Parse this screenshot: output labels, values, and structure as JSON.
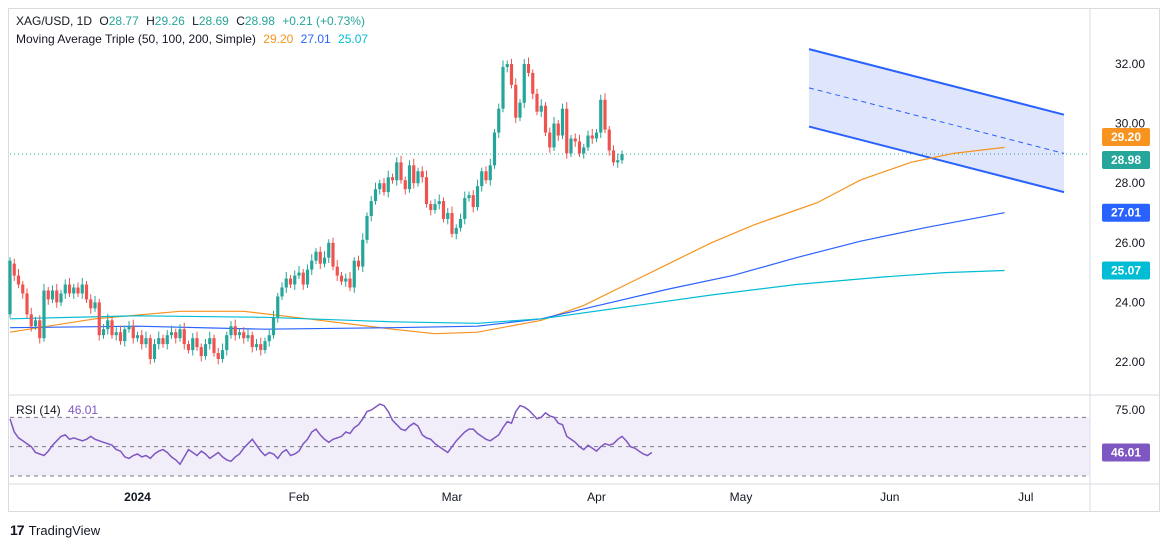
{
  "header": {
    "symbol": "XAG/USD, 1D",
    "open_label": "O",
    "open": "28.77",
    "high_label": "H",
    "high": "29.26",
    "low_label": "L",
    "low": "28.69",
    "close_label": "C",
    "close": "28.98",
    "change": "+0.21 (+0.73%)",
    "ma_title": "Moving Average Triple (50, 100, 200, Simple)",
    "ma50": "29.20",
    "ma100": "27.01",
    "ma200": "25.07"
  },
  "rsi_header": {
    "title": "RSI (14)",
    "value": "46.01"
  },
  "brand": {
    "name": "TradingView"
  },
  "colors": {
    "up": "#26a69a",
    "down": "#ef5350",
    "ma50": "#f7931e",
    "ma100": "#2962ff",
    "ma200": "#00bcd4",
    "rsi": "#7e57c2",
    "channel_fill": "#c5d0f7",
    "channel_line": "#2962ff",
    "last_price": "#26a69a"
  },
  "chart_data": [
    {
      "type": "candlestick",
      "title": "XAG/USD, 1D",
      "ylim": [
        20.6,
        33.2
      ],
      "y_ticks": [
        "32.00",
        "30.00",
        "28.00",
        "26.00",
        "24.00",
        "22.00"
      ],
      "x_ticks": [
        "2024",
        "Feb",
        "Mar",
        "Apr",
        "May",
        "Jun",
        "Jul"
      ],
      "last_price": 28.98,
      "series": [
        {
          "name": "MA 50",
          "last": 29.2,
          "values": [
            [
              0,
              23.0
            ],
            [
              20,
              23.45
            ],
            [
              40,
              23.7
            ],
            [
              55,
              23.7
            ],
            [
              70,
              23.45
            ],
            [
              90,
              23.1
            ],
            [
              100,
              22.95
            ],
            [
              110,
              23.0
            ],
            [
              125,
              23.4
            ],
            [
              135,
              23.9
            ],
            [
              145,
              24.6
            ],
            [
              155,
              25.3
            ],
            [
              165,
              26.0
            ],
            [
              175,
              26.6
            ],
            [
              180,
              26.85
            ],
            [
              190,
              27.35
            ],
            [
              200,
              28.1
            ],
            [
              212,
              28.7
            ],
            [
              222,
              29.0
            ],
            [
              234,
              29.2
            ]
          ]
        },
        {
          "name": "MA 100",
          "last": 27.01,
          "values": [
            [
              0,
              23.15
            ],
            [
              30,
              23.2
            ],
            [
              60,
              23.1
            ],
            [
              90,
              23.15
            ],
            [
              110,
              23.2
            ],
            [
              125,
              23.45
            ],
            [
              140,
              23.95
            ],
            [
              155,
              24.45
            ],
            [
              170,
              24.9
            ],
            [
              185,
              25.5
            ],
            [
              200,
              26.05
            ],
            [
              215,
              26.5
            ],
            [
              234,
              27.01
            ]
          ]
        },
        {
          "name": "MA 200",
          "last": 25.07,
          "values": [
            [
              0,
              23.45
            ],
            [
              30,
              23.55
            ],
            [
              60,
              23.5
            ],
            [
              90,
              23.35
            ],
            [
              110,
              23.3
            ],
            [
              125,
              23.45
            ],
            [
              145,
              23.85
            ],
            [
              165,
              24.25
            ],
            [
              185,
              24.6
            ],
            [
              205,
              24.85
            ],
            [
              220,
              25.0
            ],
            [
              234,
              25.07
            ]
          ]
        }
      ],
      "channel": {
        "upper": [
          [
            188,
            32.5
          ],
          [
            248,
            30.3
          ]
        ],
        "lower": [
          [
            188,
            29.9
          ],
          [
            248,
            27.7
          ]
        ],
        "mid": [
          [
            188,
            31.2
          ],
          [
            248,
            29.0
          ]
        ]
      },
      "candles": [
        [
          23.6,
          25.4
        ],
        [
          25.3,
          24.9
        ],
        [
          24.9,
          24.6
        ],
        [
          24.6,
          24.3
        ],
        [
          24.3,
          23.6
        ],
        [
          23.6,
          23.2
        ],
        [
          23.2,
          23.4
        ],
        [
          23.4,
          22.8
        ],
        [
          22.8,
          24.4
        ],
        [
          24.4,
          24.1
        ],
        [
          24.1,
          24.4
        ],
        [
          24.4,
          24.0
        ],
        [
          24.0,
          24.3
        ],
        [
          24.3,
          24.6
        ],
        [
          24.6,
          24.3
        ],
        [
          24.3,
          24.5
        ],
        [
          24.5,
          24.3
        ],
        [
          24.3,
          24.6
        ],
        [
          24.6,
          24.1
        ],
        [
          24.1,
          23.8
        ],
        [
          23.8,
          24.0
        ],
        [
          24.0,
          22.9
        ],
        [
          22.9,
          23.1
        ],
        [
          23.1,
          23.4
        ],
        [
          23.4,
          22.9
        ],
        [
          22.9,
          23.0
        ],
        [
          23.0,
          22.7
        ],
        [
          22.7,
          23.1
        ],
        [
          23.1,
          23.2
        ],
        [
          23.2,
          22.8
        ],
        [
          22.8,
          22.9
        ],
        [
          22.9,
          22.6
        ],
        [
          22.6,
          22.8
        ],
        [
          22.8,
          22.1
        ],
        [
          22.1,
          22.6
        ],
        [
          22.6,
          22.8
        ],
        [
          22.8,
          22.6
        ],
        [
          22.6,
          22.9
        ],
        [
          22.9,
          23.0
        ],
        [
          23.0,
          22.8
        ],
        [
          22.8,
          23.1
        ],
        [
          23.1,
          22.6
        ],
        [
          22.6,
          22.4
        ],
        [
          22.4,
          22.8
        ],
        [
          22.8,
          22.5
        ],
        [
          22.5,
          22.2
        ],
        [
          22.2,
          22.6
        ],
        [
          22.6,
          22.8
        ],
        [
          22.8,
          22.3
        ],
        [
          22.3,
          22.1
        ],
        [
          22.1,
          22.4
        ],
        [
          22.4,
          22.9
        ],
        [
          22.9,
          23.2
        ],
        [
          23.2,
          22.9
        ],
        [
          22.9,
          23.0
        ],
        [
          23.0,
          22.8
        ],
        [
          22.8,
          22.9
        ],
        [
          22.9,
          22.5
        ],
        [
          22.5,
          22.6
        ],
        [
          22.6,
          22.4
        ],
        [
          22.4,
          22.7
        ],
        [
          22.7,
          22.9
        ],
        [
          22.9,
          23.5
        ],
        [
          23.5,
          24.2
        ],
        [
          24.2,
          24.5
        ],
        [
          24.5,
          24.8
        ],
        [
          24.8,
          24.6
        ],
        [
          24.6,
          24.9
        ],
        [
          24.9,
          25.0
        ],
        [
          25.0,
          24.6
        ],
        [
          24.6,
          25.1
        ],
        [
          25.1,
          25.4
        ],
        [
          25.4,
          25.7
        ],
        [
          25.7,
          25.3
        ],
        [
          25.3,
          25.5
        ],
        [
          25.5,
          26.0
        ],
        [
          26.0,
          25.2
        ],
        [
          25.2,
          24.9
        ],
        [
          24.9,
          24.7
        ],
        [
          24.7,
          24.8
        ],
        [
          24.8,
          24.5
        ],
        [
          24.5,
          25.4
        ],
        [
          25.4,
          25.2
        ],
        [
          25.2,
          26.1
        ],
        [
          26.1,
          26.9
        ],
        [
          26.9,
          27.4
        ],
        [
          27.4,
          27.8
        ],
        [
          27.8,
          28.0
        ],
        [
          28.0,
          27.7
        ],
        [
          27.7,
          28.2
        ],
        [
          28.2,
          28.1
        ],
        [
          28.1,
          28.7
        ],
        [
          28.7,
          28.1
        ],
        [
          28.1,
          27.8
        ],
        [
          27.8,
          28.6
        ],
        [
          28.6,
          28.0
        ],
        [
          28.0,
          28.4
        ],
        [
          28.4,
          28.2
        ],
        [
          28.2,
          27.3
        ],
        [
          27.3,
          27.1
        ],
        [
          27.1,
          27.3
        ],
        [
          27.3,
          27.4
        ],
        [
          27.4,
          26.8
        ],
        [
          26.8,
          27.0
        ],
        [
          27.0,
          26.3
        ],
        [
          26.3,
          26.5
        ],
        [
          26.5,
          26.8
        ],
        [
          26.8,
          27.5
        ],
        [
          27.5,
          27.6
        ],
        [
          27.6,
          27.2
        ],
        [
          27.2,
          27.9
        ],
        [
          27.9,
          28.4
        ],
        [
          28.4,
          28.1
        ],
        [
          28.1,
          28.6
        ],
        [
          28.6,
          29.7
        ],
        [
          29.7,
          30.5
        ],
        [
          30.5,
          31.9
        ],
        [
          31.9,
          32.0
        ],
        [
          32.0,
          31.3
        ],
        [
          31.3,
          30.2
        ],
        [
          30.2,
          30.7
        ],
        [
          30.7,
          32.0
        ],
        [
          32.0,
          31.7
        ],
        [
          31.7,
          31.0
        ],
        [
          31.0,
          30.4
        ],
        [
          30.4,
          30.6
        ],
        [
          30.6,
          29.7
        ],
        [
          29.7,
          29.2
        ],
        [
          29.2,
          30.0
        ],
        [
          30.0,
          29.6
        ],
        [
          29.6,
          30.5
        ],
        [
          30.5,
          29.0
        ],
        [
          29.0,
          29.5
        ],
        [
          29.5,
          29.4
        ],
        [
          29.4,
          29.0
        ],
        [
          29.0,
          29.2
        ],
        [
          29.2,
          29.6
        ],
        [
          29.6,
          29.5
        ],
        [
          29.5,
          29.7
        ],
        [
          29.7,
          30.8
        ],
        [
          30.8,
          29.8
        ],
        [
          29.8,
          29.1
        ],
        [
          29.1,
          28.7
        ],
        [
          28.7,
          28.77
        ],
        [
          28.77,
          28.98
        ]
      ]
    },
    {
      "type": "line",
      "title": "RSI (14)",
      "ylim": [
        20,
        85
      ],
      "y_ticks": [
        "75.00"
      ],
      "levels": [
        70,
        50,
        30
      ],
      "last": 46.01,
      "values": [
        69,
        60,
        56,
        54,
        52,
        50,
        46,
        45,
        44,
        47,
        51,
        54,
        57,
        58,
        55,
        56,
        55,
        54,
        55,
        57,
        55,
        54,
        53,
        52,
        51,
        48,
        47,
        43,
        42,
        44,
        45,
        43,
        44,
        42,
        45,
        47,
        48,
        46,
        43,
        41,
        38,
        43,
        48,
        46,
        44,
        47,
        45,
        42,
        44,
        46,
        43,
        41,
        40,
        43,
        45,
        49,
        52,
        55,
        51,
        47,
        44,
        46,
        45,
        42,
        46,
        48,
        44,
        45,
        47,
        52,
        55,
        60,
        62,
        58,
        55,
        53,
        55,
        56,
        57,
        60,
        59,
        63,
        65,
        69,
        74,
        75,
        77,
        79,
        78,
        74,
        68,
        65,
        62,
        61,
        64,
        66,
        64,
        58,
        56,
        55,
        52,
        50,
        48,
        46,
        50,
        54,
        57,
        60,
        62,
        62,
        59,
        57,
        55,
        54,
        56,
        58,
        63,
        67,
        66,
        74,
        78,
        77,
        75,
        72,
        69,
        70,
        73,
        71,
        70,
        66,
        65,
        57,
        55,
        53,
        50,
        48,
        51,
        49,
        47,
        50,
        52,
        51,
        52,
        55,
        57,
        54,
        50,
        49,
        47,
        45,
        44,
        46.01
      ]
    }
  ]
}
